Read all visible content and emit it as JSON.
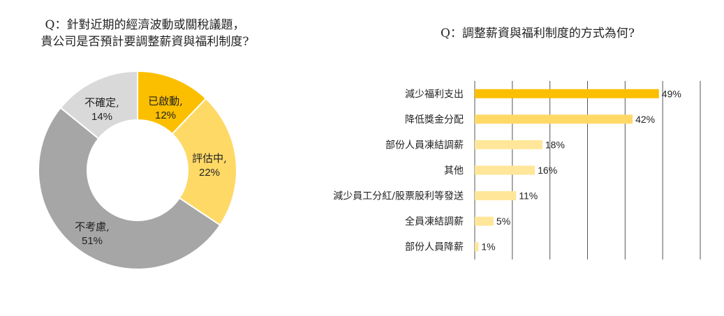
{
  "chart_data": [
    {
      "type": "pie",
      "donut": true,
      "title_lines": [
        "Q：針對近期的經濟波動或關稅議題，",
        "貴公司是否預計要調整薪資與福利制度?"
      ],
      "slices": [
        {
          "label": "已啟動,",
          "value": 12,
          "value_label": "12%",
          "color": "#FBBF00"
        },
        {
          "label": "評估中,",
          "value": 22,
          "value_label": "22%",
          "color": "#FFD966"
        },
        {
          "label": "不考慮,",
          "value": 51,
          "value_label": "51%",
          "color": "#A6A6A6"
        },
        {
          "label": "不確定,",
          "value": 14,
          "value_label": "14%",
          "color": "#D9D9D9"
        }
      ]
    },
    {
      "type": "bar",
      "orientation": "horizontal",
      "title": "Q：調整薪資與福利制度的方式為何?",
      "categories": [
        "減少福利支出",
        "降低獎金分配",
        "部份人員凍結調薪",
        "其他",
        "減少員工分紅/股票股利等發送",
        "全員凍結調薪",
        "部份人員降薪"
      ],
      "values": [
        49,
        42,
        18,
        16,
        11,
        5,
        1
      ],
      "value_labels": [
        "49%",
        "42%",
        "18%",
        "16%",
        "11%",
        "5%",
        "1%"
      ],
      "colors": [
        "#FBBF00",
        "#FFD966",
        "#FFE699",
        "#FFE699",
        "#FFE699",
        "#FFE699",
        "#FFE699"
      ],
      "xlim": [
        0,
        60
      ],
      "grid": true
    }
  ]
}
